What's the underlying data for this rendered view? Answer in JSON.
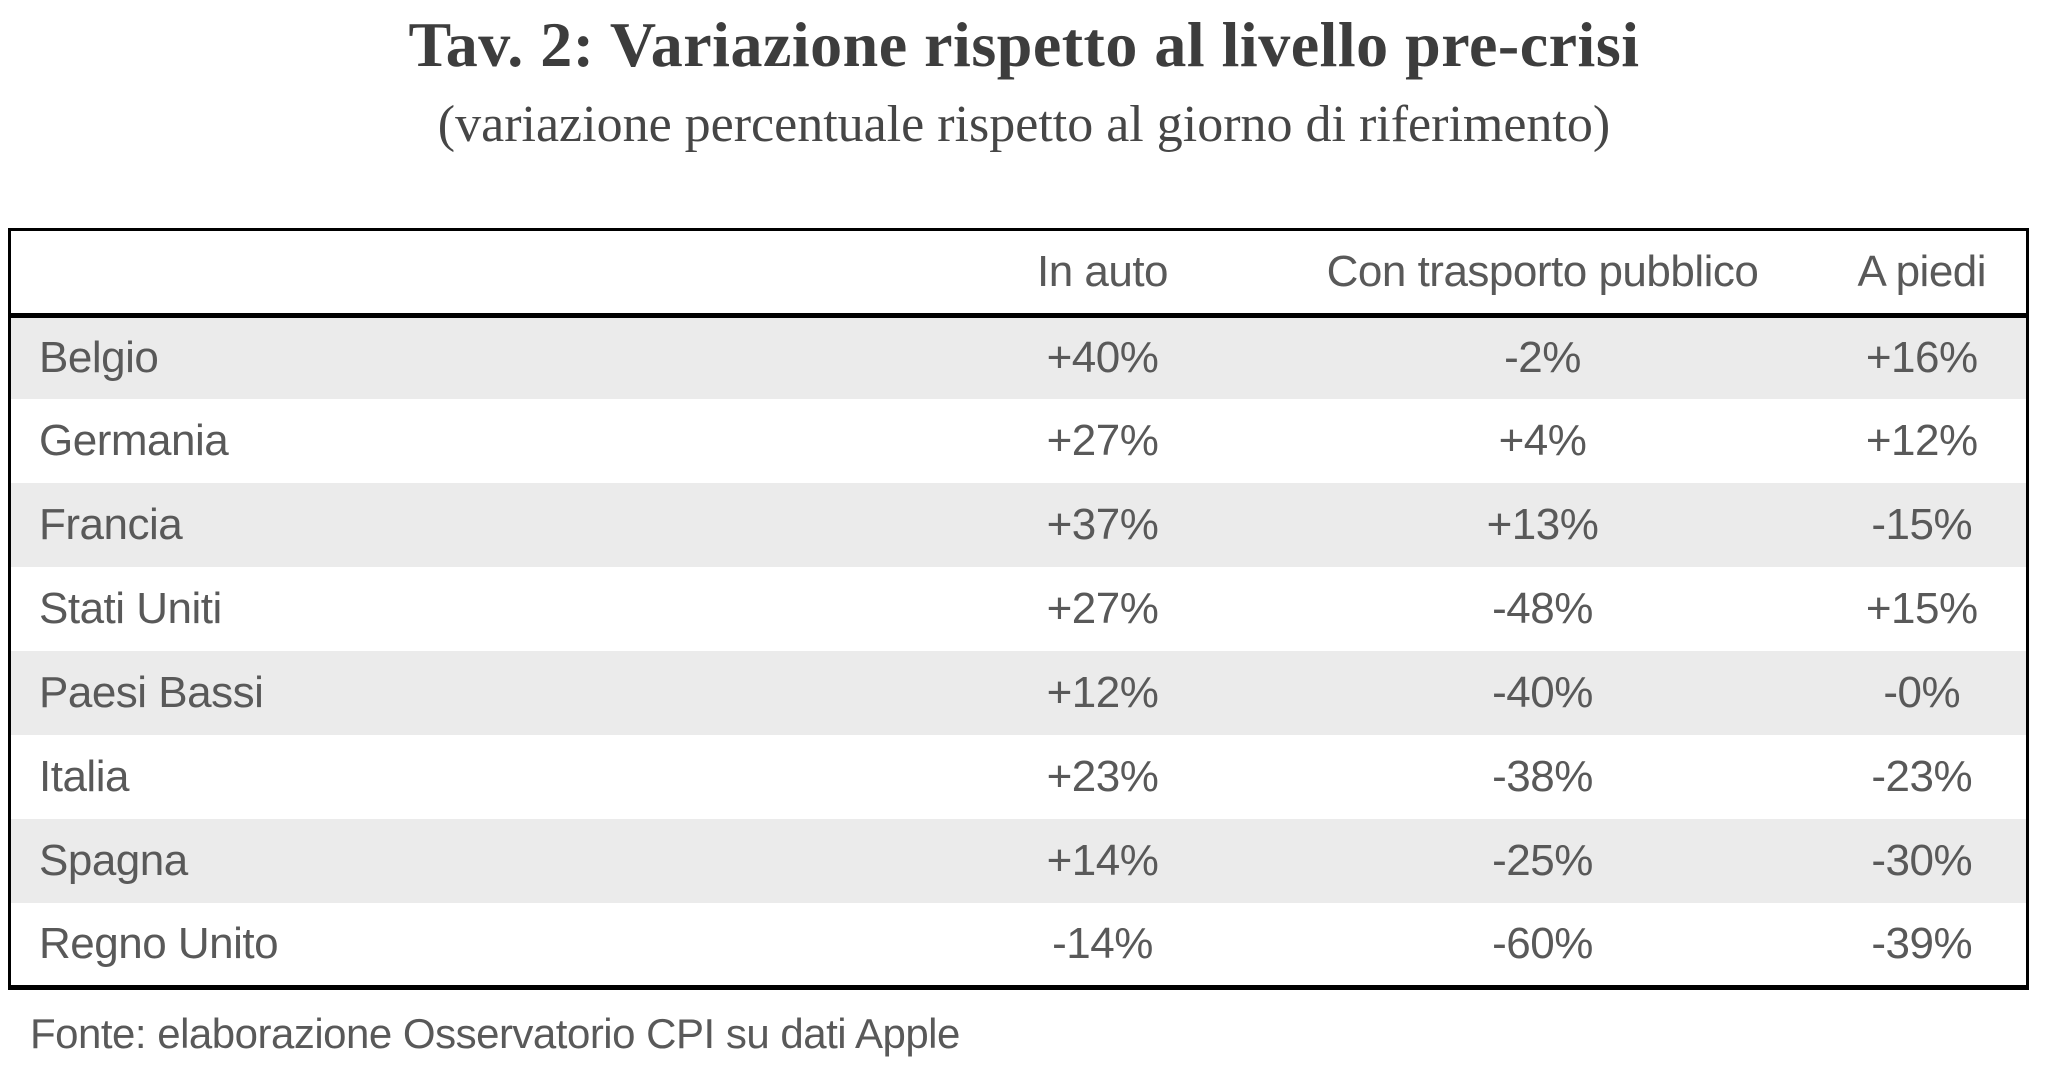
{
  "title": "Tav. 2: Variazione rispetto al livello pre-crisi",
  "subtitle": "(variazione percentuale rispetto al giorno di riferimento)",
  "table": {
    "columns": [
      "",
      "In auto",
      "Con trasporto pubblico",
      "A piedi"
    ],
    "rows": [
      [
        "Belgio",
        "+40%",
        "-2%",
        "+16%"
      ],
      [
        "Germania",
        "+27%",
        "+4%",
        "+12%"
      ],
      [
        "Francia",
        "+37%",
        "+13%",
        "-15%"
      ],
      [
        "Stati Uniti",
        "+27%",
        "-48%",
        "+15%"
      ],
      [
        "Paesi Bassi",
        "+12%",
        "-40%",
        "-0%"
      ],
      [
        "Italia",
        "+23%",
        "-38%",
        "-23%"
      ],
      [
        "Spagna",
        "+14%",
        "-25%",
        "-30%"
      ],
      [
        "Regno Unito",
        "-14%",
        "-60%",
        "-39%"
      ]
    ]
  },
  "source": "Fonte: elaborazione Osservatorio CPI su dati Apple",
  "colors": {
    "stripe": "#ebebeb",
    "table_text": "#595959",
    "title_text": "#3d3d3d",
    "border": "#000000"
  }
}
